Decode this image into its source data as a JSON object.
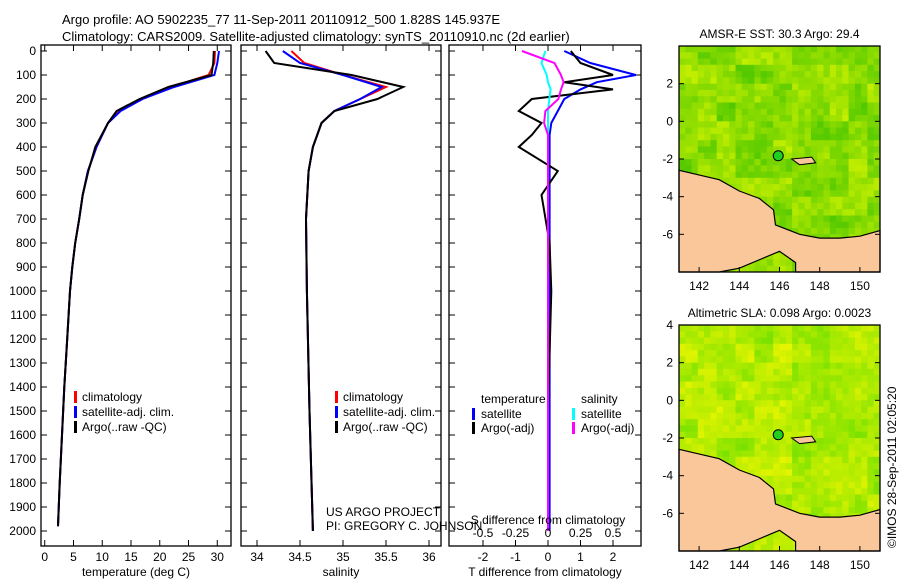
{
  "header": {
    "line1": "Argo profile: AO 5902235_77 11-Sep-2011 20110912_500 1.828S 145.937E",
    "line2": "Climatology: CARS2009. Satellite-adjusted climatology: synTS_20110910.nc (2d earlier)"
  },
  "credit": {
    "project": "US ARGO PROJECT",
    "pi": "PI: GREGORY C. JOHNSON"
  },
  "stamp": "©IMOS 28-Sep-2011 02:05:20",
  "colors": {
    "climatology": "#ff0000",
    "satellite": "#0000ff",
    "argo": "#000000",
    "sal_satellite": "#00ffff",
    "sal_argo": "#ff00ff",
    "land": "#f9c79a"
  },
  "chart_data": [
    {
      "type": "line",
      "name": "temperature",
      "xlabel": "temperature (deg C)",
      "xlim": [
        -1,
        31
      ],
      "xticks": [
        0,
        5,
        10,
        15,
        20,
        25,
        30
      ],
      "ylim": [
        0,
        2000
      ],
      "yticks": [
        0,
        100,
        200,
        300,
        400,
        500,
        600,
        700,
        800,
        900,
        1000,
        1100,
        1200,
        1300,
        1400,
        1500,
        1600,
        1700,
        1800,
        1900,
        2000
      ],
      "legend": [
        "climatology",
        "satellite-adj. clim.",
        "Argo(..raw -QC)"
      ],
      "depth": [
        0,
        50,
        100,
        150,
        200,
        250,
        300,
        400,
        500,
        600,
        700,
        800,
        900,
        1000,
        1200,
        1400,
        1600,
        1800,
        1980
      ],
      "series": [
        {
          "name": "climatology",
          "values": [
            29.6,
            29.5,
            28.5,
            22,
            17,
            13,
            11,
            9,
            7.5,
            6.6,
            6,
            5.3,
            4.8,
            4.4,
            3.9,
            3.4,
            3.0,
            2.6,
            2.3
          ]
        },
        {
          "name": "satellite-adj. clim.",
          "values": [
            30.3,
            30.0,
            29.5,
            22.5,
            17,
            13.2,
            11,
            9,
            7.5,
            6.6,
            6,
            5.3,
            4.8,
            4.4,
            3.9,
            3.4,
            3.0,
            2.6,
            2.3
          ]
        },
        {
          "name": "Argo(..raw -QC)",
          "values": [
            29.4,
            29.3,
            29,
            21.5,
            16.5,
            12.5,
            11,
            8.8,
            7.6,
            6.6,
            6,
            5.3,
            4.8,
            4.4,
            3.9,
            3.4,
            3.0,
            2.6,
            2.3
          ]
        }
      ]
    },
    {
      "type": "line",
      "name": "salinity",
      "xlabel": "salinity",
      "xlim": [
        33.8,
        36.1
      ],
      "xticks": [
        34,
        34.5,
        35,
        35.5,
        36
      ],
      "ylim": [
        0,
        2000
      ],
      "legend": [
        "climatology",
        "satellite-adj. clim.",
        "Argo(..raw -QC)"
      ],
      "depth": [
        0,
        50,
        100,
        150,
        200,
        250,
        300,
        400,
        500,
        700,
        1000,
        1500,
        2000
      ],
      "series": [
        {
          "name": "climatology",
          "values": [
            34.4,
            34.55,
            35.0,
            35.5,
            35.2,
            34.9,
            34.75,
            34.65,
            34.6,
            34.57,
            34.58,
            34.61,
            34.65
          ]
        },
        {
          "name": "satellite-adj. clim.",
          "values": [
            34.3,
            34.5,
            35.0,
            35.45,
            35.2,
            34.9,
            34.75,
            34.65,
            34.6,
            34.57,
            34.58,
            34.61,
            34.65
          ]
        },
        {
          "name": "Argo(..raw -QC)",
          "values": [
            34.1,
            34.2,
            35.1,
            35.7,
            35.4,
            34.9,
            34.75,
            34.65,
            34.6,
            34.57,
            34.58,
            34.61,
            34.65
          ]
        }
      ]
    },
    {
      "type": "line",
      "name": "difference",
      "xlabel": "T difference from climatology",
      "xlim": [
        -3,
        3
      ],
      "xticks": [
        -2,
        -1,
        0,
        1,
        2
      ],
      "x2label": "S difference from climatology",
      "x2ticks": [
        -0.5,
        -0.25,
        0,
        0.25,
        0.5
      ],
      "x2ticklabels": [
        "-0.5",
        "-0.25",
        "0",
        "0.25",
        "0.5"
      ],
      "ylim": [
        0,
        2000
      ],
      "legend_headers": [
        "temperature",
        "salinity"
      ],
      "legend": [
        "satellite",
        "Argo(-adj)",
        "satellite",
        "Argo(-adj)"
      ],
      "depth": [
        0,
        50,
        100,
        130,
        160,
        200,
        250,
        300,
        350,
        400,
        500,
        600,
        800,
        1000,
        1500,
        2000
      ],
      "series": [
        {
          "name": "T satellite",
          "values": [
            0.5,
            1.3,
            2.7,
            1.5,
            1.0,
            0.5,
            0.3,
            0.1,
            0.05,
            0.05,
            0.05,
            0.05,
            0.05,
            0.05,
            0.05,
            0.05
          ]
        },
        {
          "name": "T Argo(-adj)",
          "values": [
            0.7,
            1.0,
            2.0,
            0.5,
            2.0,
            -0.5,
            -0.9,
            -0.2,
            -0.5,
            -0.9,
            0.3,
            -0.2,
            0.05,
            0.1,
            0,
            0
          ]
        },
        {
          "name": "S satellite",
          "values": [
            -0.02,
            -0.05,
            -0.01,
            0.0,
            0.02,
            0.01,
            0,
            0,
            0,
            0,
            0,
            0,
            0,
            0,
            0,
            0
          ]
        },
        {
          "name": "S Argo(-adj)",
          "values": [
            -0.2,
            0.05,
            0.1,
            0.12,
            0.1,
            0.08,
            -0.02,
            -0.03,
            0,
            0,
            0,
            0,
            0,
            0,
            0,
            0
          ]
        }
      ]
    },
    {
      "type": "heatmap",
      "name": "sst-map",
      "title": "AMSR-E SST: 30.3 Argo: 29.4",
      "xticks": [
        142,
        144,
        146,
        148,
        150
      ],
      "yticks": [
        2,
        0,
        -2,
        -4,
        -6
      ],
      "xlim": [
        141,
        151
      ],
      "ylim": [
        -8,
        4
      ],
      "argo_position": {
        "lon": 145.937,
        "lat": -1.828
      }
    },
    {
      "type": "heatmap",
      "name": "sla-map",
      "title": "Altimetric SLA: 0.098 Argo: 0.0023",
      "xticks": [
        142,
        144,
        146,
        148,
        150
      ],
      "yticks": [
        4,
        2,
        0,
        -2,
        -4,
        -6
      ],
      "xlim": [
        141,
        151
      ],
      "ylim": [
        -8,
        4
      ],
      "argo_position": {
        "lon": 145.937,
        "lat": -1.828
      }
    }
  ]
}
